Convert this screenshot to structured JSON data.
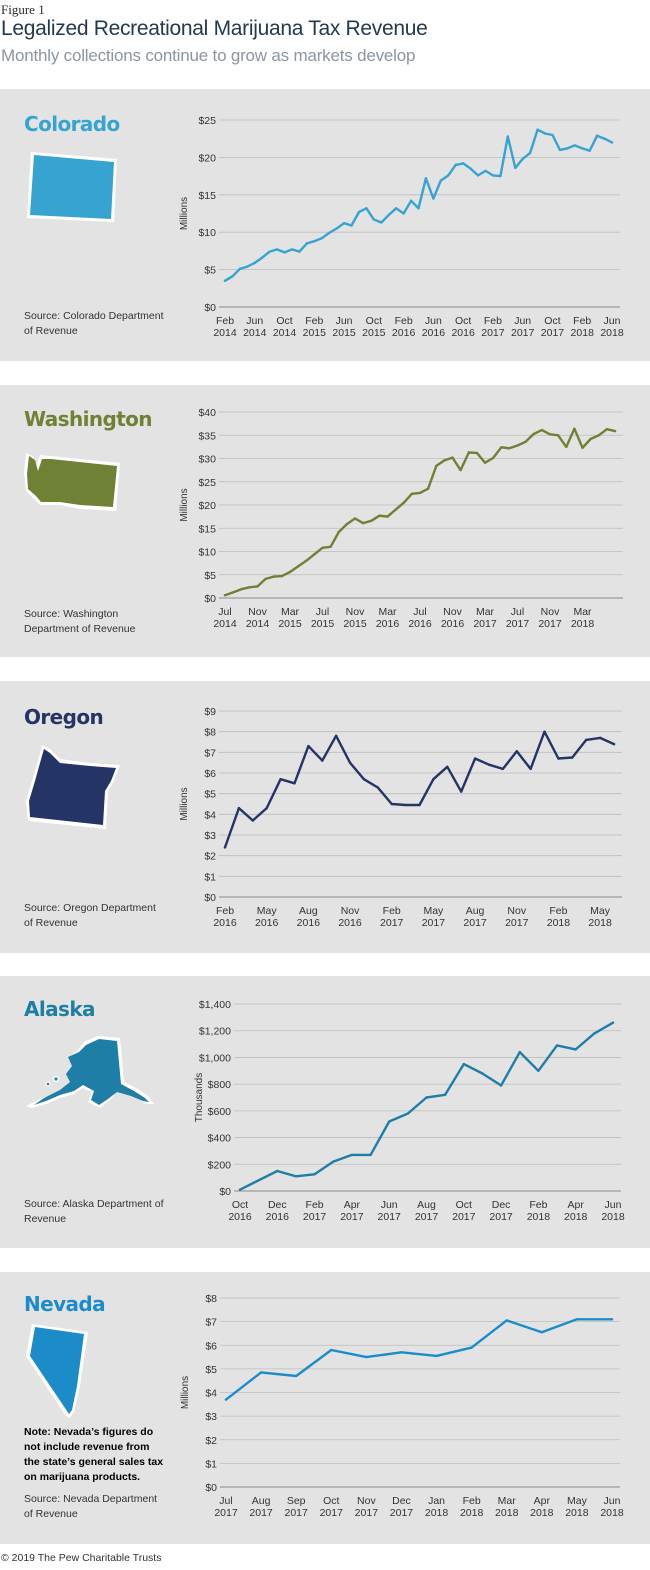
{
  "header": {
    "figure_label": "Figure 1",
    "title": "Legalized Recreational Marijuana Tax Revenue",
    "subtitle": "Monthly collections continue to grow as markets develop"
  },
  "footer": {
    "copyright": "© 2019 The Pew Charitable Trusts"
  },
  "chart_data": [
    {
      "state": "Colorado",
      "type": "line",
      "color": "#36a3d0",
      "source": "Source: Colorado Department of Revenue",
      "note": "",
      "ylabel": "Millions",
      "ylim": [
        0,
        25
      ],
      "yticks": [
        "$0",
        "$5",
        "$10",
        "$15",
        "$20",
        "$25"
      ],
      "xtick_labels": [
        [
          "Feb",
          "2014"
        ],
        [
          "Jun",
          "2014"
        ],
        [
          "Oct",
          "2014"
        ],
        [
          "Feb",
          "2015"
        ],
        [
          "Jun",
          "2015"
        ],
        [
          "Oct",
          "2015"
        ],
        [
          "Feb",
          "2016"
        ],
        [
          "Jun",
          "2016"
        ],
        [
          "Oct",
          "2016"
        ],
        [
          "Feb",
          "2017"
        ],
        [
          "Jun",
          "2017"
        ],
        [
          "Oct",
          "2017"
        ],
        [
          "Feb",
          "2018"
        ],
        [
          "Jun",
          "2018"
        ]
      ],
      "xtick_every": 4,
      "values": [
        3.5,
        4.1,
        5.1,
        5.4,
        5.9,
        6.6,
        7.4,
        7.7,
        7.3,
        7.7,
        7.4,
        8.5,
        8.8,
        9.2,
        9.9,
        10.5,
        11.2,
        10.9,
        12.7,
        13.2,
        11.7,
        11.3,
        12.3,
        13.2,
        12.5,
        14.2,
        13.2,
        17.2,
        14.5,
        16.9,
        17.6,
        19.0,
        19.2,
        18.5,
        17.6,
        18.2,
        17.6,
        17.5,
        22.8,
        18.6,
        19.8,
        20.6,
        23.7,
        23.2,
        23.0,
        21.0,
        21.2,
        21.6,
        21.2,
        20.9,
        22.9,
        22.5,
        22.0
      ],
      "grid": true
    },
    {
      "state": "Washington",
      "type": "line",
      "color": "#6e8135",
      "source": "Source: Washington Department of Revenue",
      "note": "",
      "ylabel": "Millions",
      "ylim": [
        0,
        40
      ],
      "yticks": [
        "$0",
        "$5",
        "$10",
        "$15",
        "$20",
        "$25",
        "$30",
        "$35",
        "$40"
      ],
      "xtick_labels": [
        [
          "Jul",
          "2014"
        ],
        [
          "Nov",
          "2014"
        ],
        [
          "Mar",
          "2015"
        ],
        [
          "Jul",
          "2015"
        ],
        [
          "Nov",
          "2015"
        ],
        [
          "Mar",
          "2016"
        ],
        [
          "Jul",
          "2016"
        ],
        [
          "Nov",
          "2016"
        ],
        [
          "Mar",
          "2017"
        ],
        [
          "Jul",
          "2017"
        ],
        [
          "Nov",
          "2017"
        ],
        [
          "Mar",
          "2018"
        ]
      ],
      "xtick_every": 4,
      "values": [
        0.6,
        1.2,
        1.9,
        2.3,
        2.5,
        4.1,
        4.6,
        4.7,
        5.6,
        6.8,
        8.0,
        9.4,
        10.8,
        11.0,
        14.2,
        15.9,
        17.1,
        16.1,
        16.6,
        17.7,
        17.5,
        19.0,
        20.5,
        22.4,
        22.6,
        23.5,
        28.4,
        29.6,
        30.2,
        27.5,
        31.3,
        31.2,
        29.1,
        30.1,
        32.4,
        32.2,
        32.8,
        33.6,
        35.3,
        36.1,
        35.2,
        35.0,
        32.5,
        36.4,
        32.3,
        34.2,
        35.0,
        36.3,
        35.9
      ],
      "grid": true
    },
    {
      "state": "Oregon",
      "type": "line",
      "color": "#243465",
      "source": "Source: Oregon Department of Revenue",
      "note": "",
      "ylabel": "Millions",
      "ylim": [
        0,
        9
      ],
      "yticks": [
        "$0",
        "$1",
        "$2",
        "$3",
        "$4",
        "$5",
        "$6",
        "$7",
        "$8",
        "$9"
      ],
      "xtick_labels": [
        [
          "Feb",
          "2016"
        ],
        [
          "May",
          "2016"
        ],
        [
          "Aug",
          "2016"
        ],
        [
          "Nov",
          "2016"
        ],
        [
          "Feb",
          "2017"
        ],
        [
          "May",
          "2017"
        ],
        [
          "Aug",
          "2017"
        ],
        [
          "Nov",
          "2017"
        ],
        [
          "Feb",
          "2018"
        ],
        [
          "May",
          "2018"
        ]
      ],
      "xtick_every": 3,
      "values": [
        2.4,
        4.3,
        3.7,
        4.3,
        5.7,
        5.5,
        7.3,
        6.6,
        7.8,
        6.5,
        5.7,
        5.3,
        4.5,
        4.45,
        4.45,
        5.7,
        6.3,
        5.1,
        6.7,
        6.4,
        6.2,
        7.05,
        6.2,
        8.0,
        6.7,
        6.75,
        7.6,
        7.7,
        7.4
      ],
      "grid": true
    },
    {
      "state": "Alaska",
      "type": "line",
      "color": "#1f7ea6",
      "source": "Source: Alaska Department of Revenue",
      "note": "",
      "ylabel": "Thousands",
      "ylim": [
        0,
        1400
      ],
      "yticks": [
        "$0",
        "$200",
        "$400",
        "$600",
        "$800",
        "$1,000",
        "$1,200",
        "$1,400"
      ],
      "xtick_labels": [
        [
          "Oct",
          "2016"
        ],
        [
          "Dec",
          "2016"
        ],
        [
          "Feb",
          "2017"
        ],
        [
          "Apr",
          "2017"
        ],
        [
          "Jun",
          "2017"
        ],
        [
          "Aug",
          "2017"
        ],
        [
          "Oct",
          "2017"
        ],
        [
          "Dec",
          "2017"
        ],
        [
          "Feb",
          "2018"
        ],
        [
          "Apr",
          "2018"
        ],
        [
          "Jun",
          "2018"
        ]
      ],
      "xtick_every": 2,
      "values": [
        10,
        80,
        150,
        110,
        125,
        220,
        270,
        270,
        520,
        580,
        700,
        720,
        950,
        880,
        790,
        1040,
        900,
        1090,
        1060,
        1180,
        1260
      ],
      "grid": true
    },
    {
      "state": "Nevada",
      "type": "line",
      "color": "#1c8cc8",
      "source": "Source: Nevada Department of Revenue",
      "note": "Note: Nevada’s figures do not include revenue from the state’s general sales tax on marijuana products.",
      "ylabel": "Millions",
      "ylim": [
        0,
        8
      ],
      "yticks": [
        "$0",
        "$1",
        "$2",
        "$3",
        "$4",
        "$5",
        "$6",
        "$7",
        "$8"
      ],
      "xtick_labels": [
        [
          "Jul",
          "2017"
        ],
        [
          "Aug",
          "2017"
        ],
        [
          "Sep",
          "2017"
        ],
        [
          "Oct",
          "2017"
        ],
        [
          "Nov",
          "2017"
        ],
        [
          "Dec",
          "2017"
        ],
        [
          "Jan",
          "2018"
        ],
        [
          "Feb",
          "2018"
        ],
        [
          "Mar",
          "2018"
        ],
        [
          "Apr",
          "2018"
        ],
        [
          "May",
          "2018"
        ],
        [
          "Jun",
          "2018"
        ]
      ],
      "xtick_every": 1,
      "values": [
        3.7,
        4.85,
        4.7,
        5.8,
        5.5,
        5.7,
        5.55,
        5.9,
        7.05,
        6.55,
        7.1,
        7.1
      ],
      "grid": true
    }
  ]
}
